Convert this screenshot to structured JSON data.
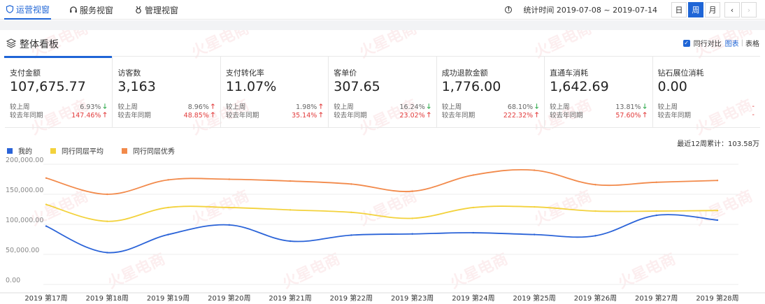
{
  "nav": {
    "tabs": [
      {
        "label": "运营视窗",
        "icon": "shield-icon"
      },
      {
        "label": "服务视窗",
        "icon": "headset-icon"
      },
      {
        "label": "管理视窗",
        "icon": "medal-icon"
      }
    ],
    "period_text": "统计时间 2019-07-08 ~ 2019-07-14",
    "period_buttons": [
      "日",
      "周",
      "月"
    ],
    "prev_symbol": "‹",
    "next_symbol": "›"
  },
  "panel": {
    "title": "整体看板",
    "compare_label": "同行对比",
    "view_chart": "图表",
    "view_separator": "|",
    "view_table": "表格"
  },
  "cards": [
    {
      "label": "支付金额",
      "value": "107,675.77",
      "wow_label": "较上周",
      "wow": "6.93%",
      "wow_dir": "down",
      "yoy_label": "较去年同期",
      "yoy": "147.46%",
      "yoy_dir": "up"
    },
    {
      "label": "访客数",
      "value": "3,163",
      "wow_label": "较上周",
      "wow": "8.96%",
      "wow_dir": "up",
      "yoy_label": "较去年同期",
      "yoy": "48.85%",
      "yoy_dir": "up"
    },
    {
      "label": "支付转化率",
      "value": "11.07%",
      "wow_label": "较上周",
      "wow": "1.98%",
      "wow_dir": "up",
      "yoy_label": "较去年同期",
      "yoy": "35.14%",
      "yoy_dir": "up"
    },
    {
      "label": "客单价",
      "value": "307.65",
      "wow_label": "较上周",
      "wow": "16.24%",
      "wow_dir": "down",
      "yoy_label": "较去年同期",
      "yoy": "23.02%",
      "yoy_dir": "up"
    },
    {
      "label": "成功退款金额",
      "value": "1,776.00",
      "wow_label": "较上周",
      "wow": "68.10%",
      "wow_dir": "down",
      "yoy_label": "较去年同期",
      "yoy": "222.32%",
      "yoy_dir": "up"
    },
    {
      "label": "直通车消耗",
      "value": "1,642.69",
      "wow_label": "较上周",
      "wow": "13.81%",
      "wow_dir": "down",
      "yoy_label": "较去年同期",
      "yoy": "57.60%",
      "yoy_dir": "up"
    },
    {
      "label": "钻石展位消耗",
      "value": "0.00",
      "wow_label": "较上周",
      "wow": "-",
      "wow_dir": "none",
      "yoy_label": "较去年同期",
      "yoy": "-",
      "yoy_dir": "none"
    }
  ],
  "cumulative": "最近12周累计：103.58万",
  "colors": {
    "accent": "#1f65d6",
    "mine": "#2a63d8",
    "avg": "#f3d23c",
    "top": "#f28a4b",
    "up": "#e23c3c",
    "down": "#27a745"
  },
  "watermark": "火星电商",
  "chart_data": {
    "type": "line",
    "categories": [
      "2019 第17周",
      "2019 第18周",
      "2019 第19周",
      "2019 第20周",
      "2019 第21周",
      "2019 第22周",
      "2019 第23周",
      "2019 第24周",
      "2019 第25周",
      "2019 第26周",
      "2019 第27周",
      "2019 第28周"
    ],
    "series": [
      {
        "name": "我的",
        "color": "#2a63d8",
        "values": [
          97000,
          53000,
          83000,
          99000,
          72000,
          82000,
          84000,
          86000,
          83000,
          81000,
          115000,
          107000
        ]
      },
      {
        "name": "同行同层平均",
        "color": "#f3d23c",
        "values": [
          133000,
          105000,
          128000,
          128000,
          124000,
          120000,
          110000,
          128000,
          129000,
          122000,
          122000,
          123000
        ]
      },
      {
        "name": "同行同层优秀",
        "color": "#f28a4b",
        "values": [
          177000,
          150000,
          174000,
          175000,
          172000,
          167000,
          155000,
          182000,
          190000,
          166000,
          170000,
          173000
        ]
      }
    ],
    "yticks": [
      "0.00",
      "50,000.00",
      "100,000.00",
      "150,000.00",
      "200,000.00"
    ],
    "ylim": [
      0,
      200000
    ],
    "grid": true,
    "legend": "top-left"
  }
}
